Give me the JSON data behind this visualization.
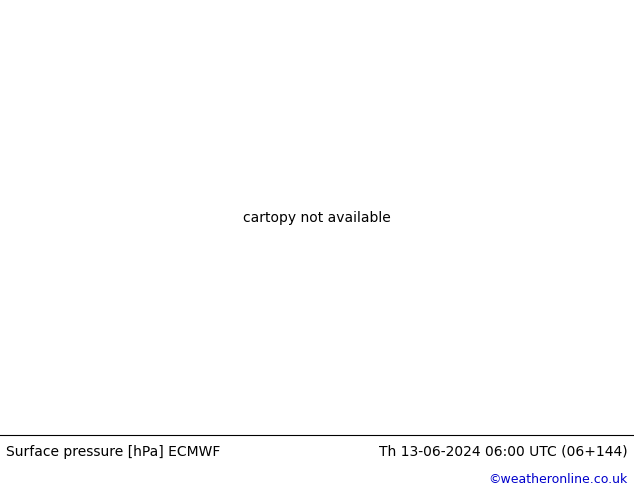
{
  "title_left": "Surface pressure [hPa] ECMWF",
  "title_right": "Th 13-06-2024 06:00 UTC (06+144)",
  "copyright": "©weatheronline.co.uk",
  "land_color": "#aad47c",
  "sea_color": "#c8c8c8",
  "footer_bg": "#ffffff",
  "footer_text_color": "#000000",
  "copyright_color": "#0000cc",
  "fig_width": 6.34,
  "fig_height": 4.9,
  "dpi": 100,
  "map_extent": [
    -10,
    42,
    27,
    58
  ],
  "footer_fontsize": 10,
  "label_fontsize": 7
}
